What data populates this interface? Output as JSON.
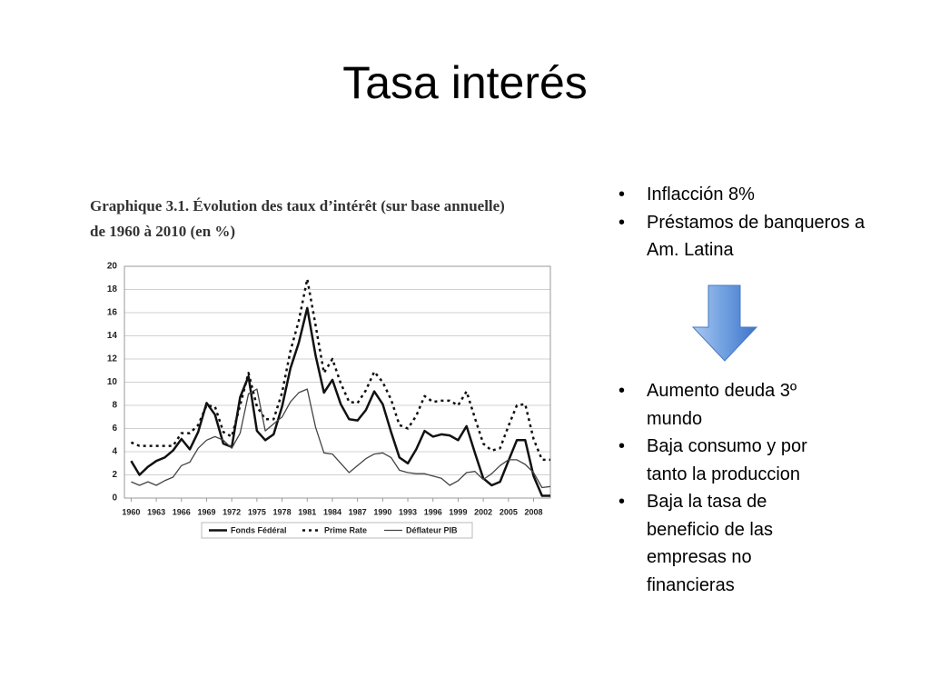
{
  "slide_title": "Tasa interés",
  "bullets_top": [
    "Inflacción 8%",
    "Préstamos de banqueros a Am. Latina"
  ],
  "bullets_bottom": [
    "Aumento deuda 3º mundo",
    "Baja consumo y por tanto la produccion",
    "Baja la tasa de beneficio de las empresas no financieras"
  ],
  "chart_data": {
    "type": "line",
    "title_lines": [
      "Graphique 3.1. Évolution des taux d’intérêt (sur base annuelle)",
      "de 1960 à 2010 (en %)"
    ],
    "x": [
      1960,
      1961,
      1962,
      1963,
      1964,
      1965,
      1966,
      1967,
      1968,
      1969,
      1970,
      1971,
      1972,
      1973,
      1974,
      1975,
      1976,
      1977,
      1978,
      1979,
      1980,
      1981,
      1982,
      1983,
      1984,
      1985,
      1986,
      1987,
      1988,
      1989,
      1990,
      1991,
      1992,
      1993,
      1994,
      1995,
      1996,
      1997,
      1998,
      1999,
      2000,
      2001,
      2002,
      2003,
      2004,
      2005,
      2006,
      2007,
      2008,
      2009,
      2010
    ],
    "series": [
      {
        "name": "Fonds Fédéral",
        "color": "#111111",
        "line_style": "solid",
        "width": 2.5,
        "values": [
          3.2,
          2.0,
          2.7,
          3.2,
          3.5,
          4.1,
          5.1,
          4.2,
          5.7,
          8.2,
          7.2,
          4.7,
          4.4,
          8.7,
          10.5,
          5.8,
          5.0,
          5.5,
          7.9,
          11.2,
          13.4,
          16.4,
          12.3,
          9.1,
          10.2,
          8.1,
          6.8,
          6.7,
          7.6,
          9.2,
          8.1,
          5.7,
          3.5,
          3.0,
          4.2,
          5.8,
          5.3,
          5.5,
          5.4,
          5.0,
          6.2,
          3.9,
          1.7,
          1.1,
          1.4,
          3.2,
          5.0,
          5.0,
          1.9,
          0.2,
          0.2
        ]
      },
      {
        "name": "Prime Rate",
        "color": "#111111",
        "line_style": "dotted",
        "width": 2.5,
        "values": [
          4.8,
          4.5,
          4.5,
          4.5,
          4.5,
          4.5,
          5.6,
          5.6,
          6.3,
          8.0,
          7.9,
          5.7,
          5.3,
          8.0,
          10.8,
          7.9,
          6.8,
          6.8,
          9.1,
          12.7,
          15.3,
          18.9,
          14.9,
          10.8,
          12.0,
          9.9,
          8.3,
          8.2,
          9.3,
          10.9,
          10.0,
          8.5,
          6.3,
          6.0,
          7.1,
          8.8,
          8.3,
          8.4,
          8.4,
          8.0,
          9.2,
          6.9,
          4.7,
          4.1,
          4.3,
          6.2,
          8.0,
          8.1,
          5.1,
          3.3,
          3.3
        ]
      },
      {
        "name": "Déflateur PIB",
        "color": "#444444",
        "line_style": "solid",
        "width": 1.3,
        "values": [
          1.4,
          1.1,
          1.4,
          1.1,
          1.5,
          1.8,
          2.8,
          3.1,
          4.3,
          5.0,
          5.3,
          5.0,
          4.3,
          5.6,
          9.0,
          9.4,
          5.8,
          6.4,
          7.0,
          8.3,
          9.1,
          9.4,
          6.1,
          3.9,
          3.8,
          3.0,
          2.2,
          2.8,
          3.4,
          3.8,
          3.9,
          3.5,
          2.4,
          2.2,
          2.1,
          2.1,
          1.9,
          1.7,
          1.1,
          1.5,
          2.2,
          2.3,
          1.6,
          2.1,
          2.8,
          3.3,
          3.3,
          2.9,
          2.2,
          0.9,
          1.0
        ]
      }
    ],
    "xlim": [
      1959.2,
      2010
    ],
    "xticks": [
      1960,
      1963,
      1966,
      1969,
      1972,
      1975,
      1978,
      1981,
      1984,
      1987,
      1990,
      1993,
      1996,
      1999,
      2002,
      2005,
      2008
    ],
    "ylim": [
      0,
      20
    ],
    "yticks": [
      0,
      2,
      4,
      6,
      8,
      10,
      12,
      14,
      16,
      18,
      20
    ],
    "grid": true,
    "legend": "bottom"
  }
}
